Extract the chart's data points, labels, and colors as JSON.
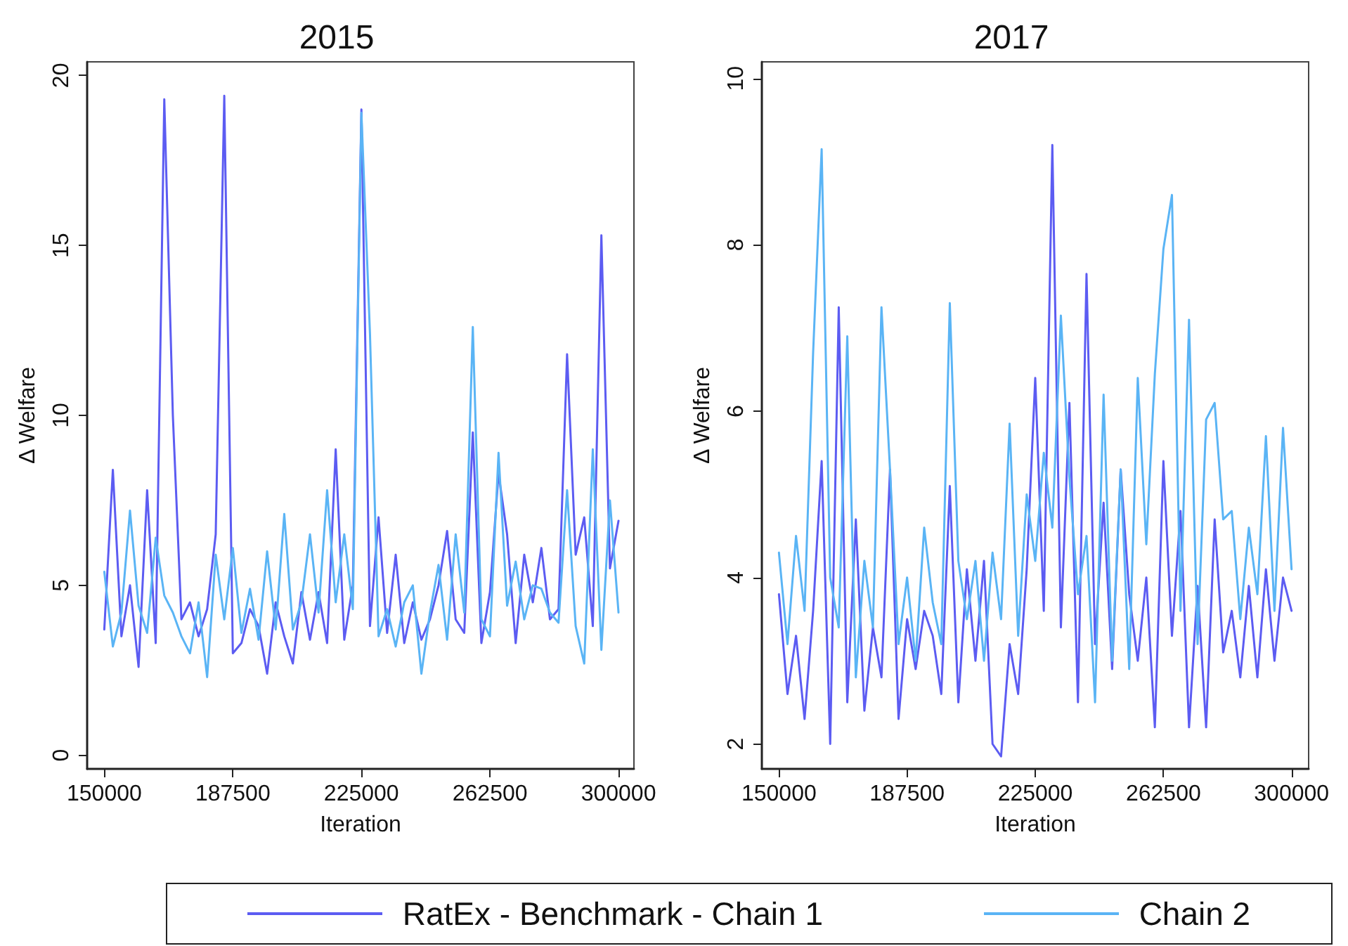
{
  "chart_data": [
    {
      "type": "line",
      "title": "2015",
      "xlabel": "Iteration",
      "ylabel": "Δ Welfare",
      "x": [
        150000,
        152500,
        155000,
        157500,
        160000,
        162500,
        165000,
        167500,
        170000,
        172500,
        175000,
        177500,
        180000,
        182500,
        185000,
        187500,
        190000,
        192500,
        195000,
        197500,
        200000,
        202500,
        205000,
        207500,
        210000,
        212500,
        215000,
        217500,
        220000,
        222500,
        225000,
        227500,
        230000,
        232500,
        235000,
        237500,
        240000,
        242500,
        245000,
        247500,
        250000,
        252500,
        255000,
        257500,
        260000,
        262500,
        265000,
        267500,
        270000,
        272500,
        275000,
        277500,
        280000,
        282500,
        285000,
        287500,
        290000,
        292500,
        295000,
        297500,
        300000
      ],
      "series": [
        {
          "name": "RatEx - Benchmark - Chain 1",
          "color": "#5c5cf2",
          "values": [
            3.7,
            8.4,
            3.5,
            5.0,
            2.6,
            7.8,
            3.3,
            19.3,
            10.0,
            4.0,
            4.5,
            3.5,
            4.3,
            6.5,
            19.4,
            3.0,
            3.3,
            4.3,
            3.8,
            2.4,
            4.5,
            3.5,
            2.7,
            4.8,
            3.4,
            4.8,
            3.3,
            9.0,
            3.4,
            5.0,
            19.0,
            3.8,
            7.0,
            3.6,
            5.9,
            3.3,
            4.5,
            3.4,
            4.0,
            5.0,
            6.6,
            4.0,
            3.6,
            9.5,
            3.3,
            4.8,
            8.3,
            6.5,
            3.3,
            5.9,
            4.5,
            6.1,
            4.0,
            4.3,
            11.8,
            5.9,
            7.0,
            3.8,
            15.3,
            5.5,
            6.9
          ]
        },
        {
          "name": "Chain 2",
          "color": "#5ab4f5",
          "values": [
            5.4,
            3.2,
            4.2,
            7.2,
            4.4,
            3.6,
            6.4,
            4.7,
            4.2,
            3.5,
            3.0,
            4.5,
            2.3,
            5.9,
            4.0,
            6.1,
            3.6,
            4.9,
            3.4,
            6.0,
            3.7,
            7.1,
            3.7,
            4.5,
            6.5,
            4.2,
            7.8,
            4.5,
            6.5,
            4.3,
            18.9,
            12.4,
            3.5,
            4.3,
            3.2,
            4.5,
            5.0,
            2.4,
            4.2,
            5.6,
            3.4,
            6.5,
            4.2,
            12.6,
            4.0,
            3.5,
            8.9,
            4.4,
            5.7,
            4.0,
            5.0,
            4.9,
            4.2,
            3.9,
            7.8,
            3.8,
            2.7,
            9.0,
            3.1,
            7.5,
            4.2
          ]
        }
      ],
      "xlim": [
        145000,
        304500
      ],
      "xticks": [
        150000,
        187500,
        225000,
        262500,
        300000
      ],
      "ylim": [
        -0.4,
        20.4
      ],
      "yticks": [
        0,
        5,
        10,
        15,
        20
      ],
      "grid": false,
      "legend": "bottom",
      "marker": "none",
      "line_style": "solid"
    },
    {
      "type": "line",
      "title": "2017",
      "xlabel": "Iteration",
      "ylabel": "Δ Welfare",
      "x": [
        150000,
        152500,
        155000,
        157500,
        160000,
        162500,
        165000,
        167500,
        170000,
        172500,
        175000,
        177500,
        180000,
        182500,
        185000,
        187500,
        190000,
        192500,
        195000,
        197500,
        200000,
        202500,
        205000,
        207500,
        210000,
        212500,
        215000,
        217500,
        220000,
        222500,
        225000,
        227500,
        230000,
        232500,
        235000,
        237500,
        240000,
        242500,
        245000,
        247500,
        250000,
        252500,
        255000,
        257500,
        260000,
        262500,
        265000,
        267500,
        270000,
        272500,
        275000,
        277500,
        280000,
        282500,
        285000,
        287500,
        290000,
        292500,
        295000,
        297500,
        300000
      ],
      "series": [
        {
          "name": "RatEx - Benchmark - Chain 1",
          "color": "#5c5cf2",
          "values": [
            3.8,
            2.6,
            3.3,
            2.3,
            3.6,
            5.4,
            2.0,
            7.25,
            2.5,
            4.7,
            2.4,
            3.4,
            2.8,
            5.3,
            2.3,
            3.5,
            2.9,
            3.6,
            3.3,
            2.6,
            5.1,
            2.5,
            4.1,
            3.0,
            4.2,
            2.0,
            1.85,
            3.2,
            2.6,
            4.1,
            6.4,
            3.6,
            9.2,
            3.4,
            6.1,
            2.5,
            7.65,
            3.2,
            4.9,
            2.9,
            5.3,
            3.8,
            3.0,
            4.0,
            2.2,
            5.4,
            3.3,
            4.8,
            2.2,
            3.9,
            2.2,
            4.7,
            3.1,
            3.6,
            2.8,
            3.9,
            2.8,
            4.1,
            3.0,
            4.0,
            3.6
          ]
        },
        {
          "name": "Chain 2",
          "color": "#5ab4f5",
          "values": [
            4.3,
            3.2,
            4.5,
            3.6,
            6.7,
            9.15,
            4.0,
            3.4,
            6.9,
            2.8,
            4.2,
            3.4,
            7.25,
            5.3,
            3.2,
            4.0,
            3.0,
            4.6,
            3.7,
            3.2,
            7.3,
            4.2,
            3.5,
            4.2,
            3.0,
            4.3,
            3.5,
            5.85,
            3.3,
            5.0,
            4.2,
            5.5,
            4.6,
            7.15,
            5.2,
            3.8,
            4.5,
            2.5,
            6.2,
            3.0,
            5.3,
            2.9,
            6.4,
            4.4,
            6.45,
            7.95,
            8.6,
            3.6,
            7.1,
            3.2,
            5.9,
            6.1,
            4.7,
            4.8,
            3.5,
            4.6,
            3.8,
            5.7,
            3.6,
            5.8,
            4.1
          ]
        }
      ],
      "xlim": [
        145000,
        305000
      ],
      "xticks": [
        150000,
        187500,
        225000,
        262500,
        300000
      ],
      "ylim": [
        1.7,
        10.2
      ],
      "yticks": [
        2,
        4,
        6,
        8,
        10
      ],
      "grid": false,
      "legend": "bottom",
      "marker": "none",
      "line_style": "solid"
    }
  ]
}
